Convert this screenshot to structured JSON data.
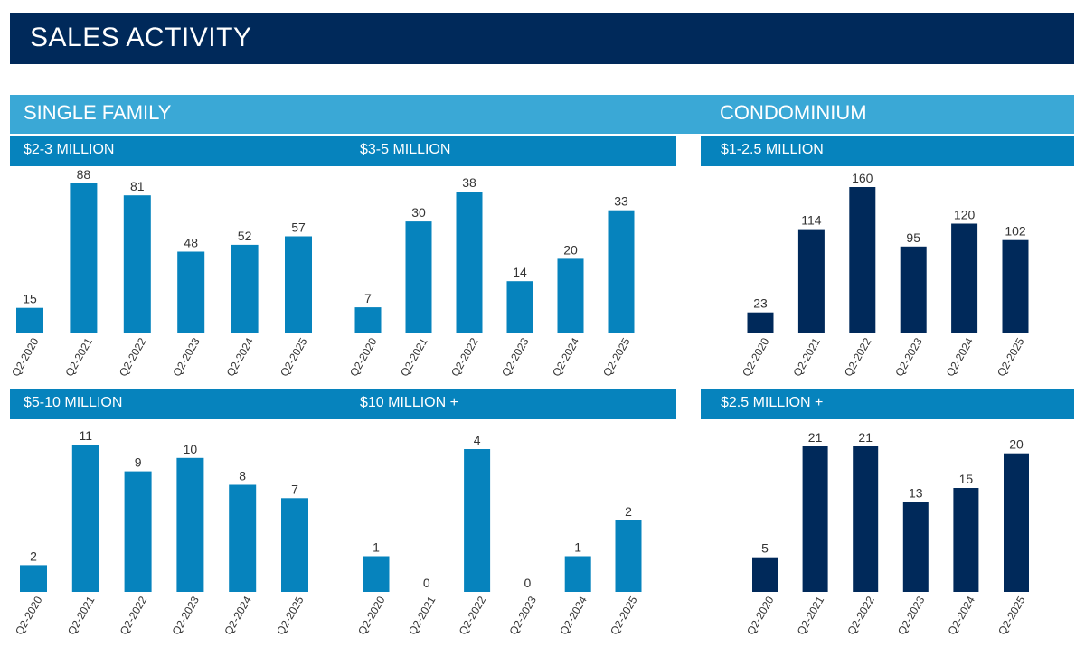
{
  "page": {
    "title": "SALES ACTIVITY"
  },
  "sections": {
    "single_family": "SINGLE FAMILY",
    "condominium": "CONDOMINIUM"
  },
  "colors": {
    "title_bg": "#00295a",
    "section_bg": "#3aa8d6",
    "sub_bg": "#0683bd",
    "bar_light": "#0683bd",
    "bar_dark": "#00295a",
    "text": "#333333"
  },
  "chart_data": [
    {
      "id": "sf-2-3",
      "type": "bar",
      "title": "$2-3 MILLION",
      "categories": [
        "Q2-2020",
        "Q2-2021",
        "Q2-2022",
        "Q2-2023",
        "Q2-2024",
        "Q2-2025"
      ],
      "values": [
        15,
        88,
        81,
        48,
        52,
        57
      ],
      "ylim": [
        0,
        88
      ],
      "color": "#0683bd"
    },
    {
      "id": "sf-3-5",
      "type": "bar",
      "title": "$3-5 MILLION",
      "categories": [
        "Q2-2020",
        "Q2-2021",
        "Q2-2022",
        "Q2-2023",
        "Q2-2024",
        "Q2-2025"
      ],
      "values": [
        7,
        30,
        38,
        14,
        20,
        33
      ],
      "ylim": [
        0,
        38
      ],
      "color": "#0683bd"
    },
    {
      "id": "condo-1-2.5",
      "type": "bar",
      "title": "$1-2.5 MILLION",
      "categories": [
        "Q2-2020",
        "Q2-2021",
        "Q2-2022",
        "Q2-2023",
        "Q2-2024",
        "Q2-2025"
      ],
      "values": [
        23,
        114,
        160,
        95,
        120,
        102
      ],
      "ylim": [
        0,
        160
      ],
      "color": "#00295a"
    },
    {
      "id": "sf-5-10",
      "type": "bar",
      "title": "$5-10 MILLION",
      "categories": [
        "Q2-2020",
        "Q2-2021",
        "Q2-2022",
        "Q2-2023",
        "Q2-2024",
        "Q2-2025"
      ],
      "values": [
        2,
        11,
        9,
        10,
        8,
        7
      ],
      "ylim": [
        0,
        11
      ],
      "color": "#0683bd"
    },
    {
      "id": "sf-10-plus",
      "type": "bar",
      "title": "$10 MILLION +",
      "categories": [
        "Q2-2020",
        "Q2-2021",
        "Q2-2022",
        "Q2-2023",
        "Q2-2024",
        "Q2-2025"
      ],
      "values": [
        1,
        0,
        4,
        0,
        1,
        2
      ],
      "ylim": [
        0,
        4
      ],
      "color": "#0683bd"
    },
    {
      "id": "condo-2.5-plus",
      "type": "bar",
      "title": "$2.5 MILLION +",
      "categories": [
        "Q2-2020",
        "Q2-2021",
        "Q2-2022",
        "Q2-2023",
        "Q2-2024",
        "Q2-2025"
      ],
      "values": [
        5,
        21,
        21,
        13,
        15,
        20
      ],
      "ylim": [
        0,
        21
      ],
      "color": "#00295a"
    }
  ]
}
